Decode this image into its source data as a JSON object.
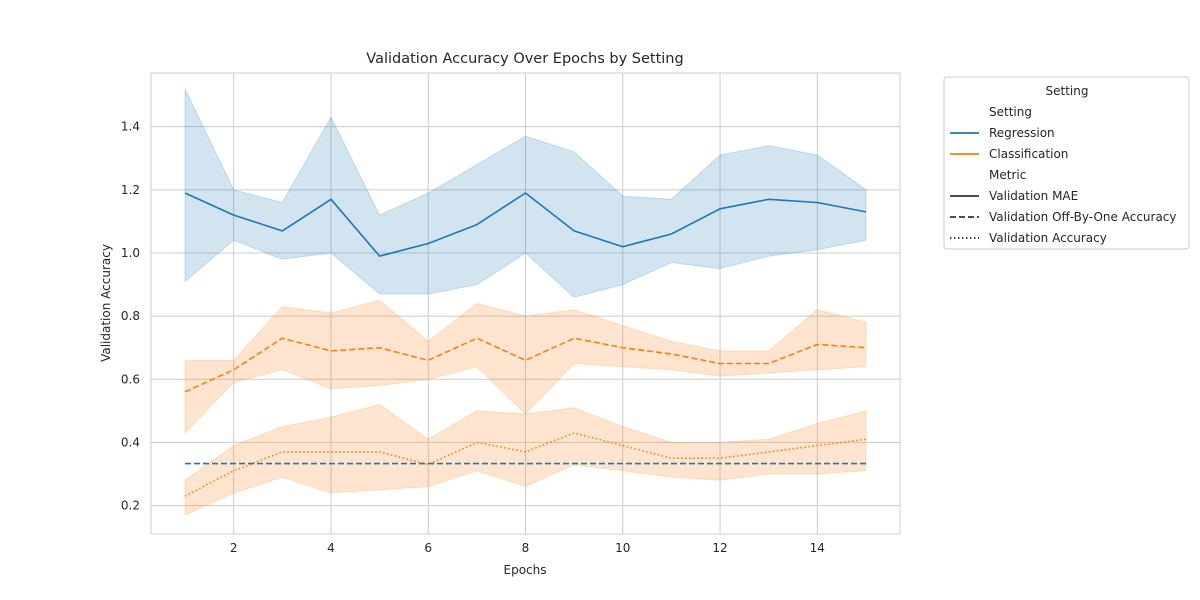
{
  "chart_data": {
    "type": "line",
    "title": "Validation Accuracy Over Epochs by Setting",
    "xlabel": "Epochs",
    "ylabel": "Validation Accuracy",
    "xlim": [
      0.3,
      15.7
    ],
    "ylim": [
      0.11,
      1.57
    ],
    "xticks": [
      2,
      4,
      6,
      8,
      10,
      12,
      14
    ],
    "yticks": [
      0.2,
      0.4,
      0.6,
      0.8,
      1.0,
      1.2,
      1.4
    ],
    "ytick_labels": [
      "0.2",
      "0.4",
      "0.6",
      "0.8",
      "1.0",
      "1.2",
      "1.4"
    ],
    "grid": true,
    "legend_position": "outside-right",
    "legend": {
      "title": "Setting",
      "hue_heading": "Setting",
      "hue_entries": [
        {
          "label": "Regression",
          "color": "#1f77b4"
        },
        {
          "label": "Classification",
          "color": "#ff7f0e"
        }
      ],
      "style_heading": "Metric",
      "style_entries": [
        {
          "label": "Validation MAE",
          "dash": "solid"
        },
        {
          "label": "Validation Off-By-One Accuracy",
          "dash": "dashed"
        },
        {
          "label": "Validation Accuracy",
          "dash": "dotted"
        }
      ]
    },
    "x": [
      1,
      2,
      3,
      4,
      5,
      6,
      7,
      8,
      9,
      10,
      11,
      12,
      13,
      14,
      15
    ],
    "series": [
      {
        "setting": "Regression",
        "metric": "Validation MAE",
        "color": "#1f77b4",
        "dash": "solid",
        "values": [
          1.19,
          1.12,
          1.07,
          1.17,
          0.99,
          1.03,
          1.09,
          1.19,
          1.07,
          1.02,
          1.06,
          1.14,
          1.17,
          1.16,
          1.13
        ],
        "lower": [
          0.91,
          1.04,
          0.98,
          1.0,
          0.87,
          0.87,
          0.9,
          1.0,
          0.86,
          0.9,
          0.97,
          0.95,
          0.99,
          1.01,
          1.04
        ],
        "upper": [
          1.52,
          1.2,
          1.16,
          1.43,
          1.12,
          1.19,
          1.28,
          1.37,
          1.32,
          1.18,
          1.17,
          1.31,
          1.34,
          1.31,
          1.2
        ]
      },
      {
        "setting": "Classification",
        "metric": "Validation Off-By-One Accuracy",
        "color": "#ff7f0e",
        "dash": "dashed",
        "values": [
          0.56,
          0.63,
          0.73,
          0.69,
          0.7,
          0.66,
          0.73,
          0.66,
          0.73,
          0.7,
          0.68,
          0.65,
          0.65,
          0.71,
          0.7
        ],
        "lower": [
          0.43,
          0.59,
          0.63,
          0.57,
          0.58,
          0.6,
          0.64,
          0.49,
          0.65,
          0.64,
          0.63,
          0.61,
          0.62,
          0.63,
          0.64
        ],
        "upper": [
          0.66,
          0.66,
          0.83,
          0.81,
          0.85,
          0.72,
          0.84,
          0.8,
          0.82,
          0.77,
          0.72,
          0.69,
          0.69,
          0.82,
          0.78
        ]
      },
      {
        "setting": "Classification",
        "metric": "Validation Accuracy",
        "color": "#ff7f0e",
        "dash": "dotted",
        "values": [
          0.23,
          0.31,
          0.37,
          0.37,
          0.37,
          0.33,
          0.4,
          0.37,
          0.43,
          0.39,
          0.35,
          0.35,
          0.37,
          0.39,
          0.41
        ],
        "lower": [
          0.17,
          0.24,
          0.29,
          0.24,
          0.25,
          0.26,
          0.31,
          0.26,
          0.33,
          0.31,
          0.29,
          0.28,
          0.3,
          0.3,
          0.31
        ],
        "upper": [
          0.28,
          0.39,
          0.45,
          0.48,
          0.52,
          0.41,
          0.5,
          0.49,
          0.51,
          0.45,
          0.4,
          0.4,
          0.41,
          0.46,
          0.5
        ]
      },
      {
        "setting": "Regression",
        "metric": "Validation Off-By-One Accuracy",
        "color": "#1f77b4",
        "dash": "dashed",
        "values": [
          0.333,
          0.333,
          0.333,
          0.333,
          0.333,
          0.333,
          0.333,
          0.333,
          0.333,
          0.333,
          0.333,
          0.333,
          0.333,
          0.333,
          0.333
        ]
      }
    ]
  }
}
